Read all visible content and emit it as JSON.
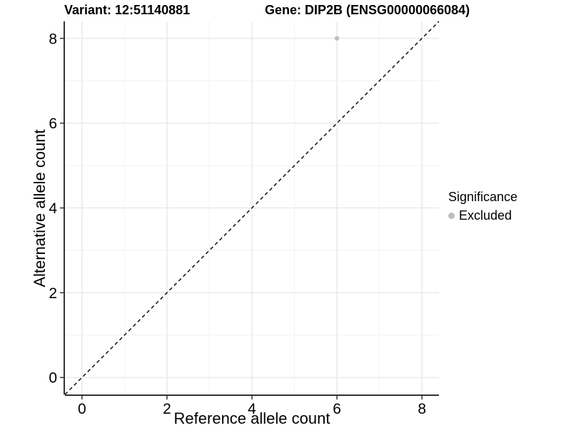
{
  "figure": {
    "title_left": "Variant: 12:51140881",
    "title_right": "Gene: DIP2B (ENSG00000066084)"
  },
  "legend": {
    "title": "Significance",
    "items": [
      {
        "label": "Excluded",
        "color": "#bdbdbd"
      }
    ]
  },
  "chart_data": {
    "type": "scatter",
    "title": "Variant: 12:51140881  Gene: DIP2B (ENSG00000066084)",
    "xlabel": "Reference allele count",
    "ylabel": "Alternative allele count",
    "xlim": [
      -0.4,
      8.4
    ],
    "ylim": [
      -0.4,
      8.4
    ],
    "xticks": [
      0,
      2,
      4,
      6,
      8
    ],
    "yticks": [
      0,
      2,
      4,
      6,
      8
    ],
    "gridline_values": [
      0,
      1,
      2,
      3,
      4,
      5,
      6,
      7,
      8
    ],
    "grid": true,
    "legend_position": "right",
    "series": [
      {
        "name": "Excluded",
        "color": "#bdbdbd",
        "points": [
          {
            "x": 6,
            "y": 8
          }
        ]
      }
    ],
    "reference_line": {
      "slope": 1,
      "intercept": 0,
      "style": "dashed",
      "color": "#000000"
    },
    "colors": {
      "grid_major": "#e6e6e6",
      "grid_minor": "#f2f2f2",
      "axis_line": "#333333",
      "panel_background": "#ffffff"
    }
  }
}
